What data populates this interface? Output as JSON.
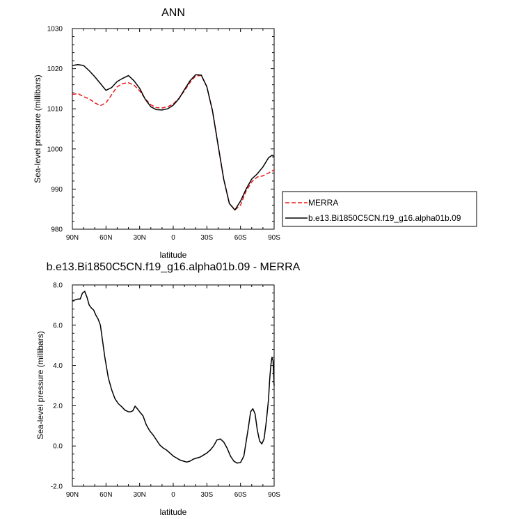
{
  "chart_data": [
    {
      "type": "line",
      "title": "ANN",
      "xlabel": "latitude",
      "ylabel": "Sea-level pressure (millibars)",
      "xlim": [
        90,
        -90
      ],
      "ylim": [
        980,
        1030
      ],
      "x_ticks": [
        90,
        60,
        30,
        0,
        -30,
        -60,
        -90
      ],
      "x_tick_labels": [
        "90N",
        "60N",
        "30N",
        "0",
        "30S",
        "60S",
        "90S"
      ],
      "y_ticks": [
        980,
        990,
        1000,
        1010,
        1020,
        1030
      ],
      "y_tick_labels": [
        "980",
        "990",
        "1000",
        "1010",
        "1020",
        "1030"
      ],
      "legend_position": "right",
      "series": [
        {
          "name": "MERRA",
          "color": "#e8191c",
          "dash": "dashed",
          "x": [
            90,
            85,
            80,
            75,
            70,
            65,
            60,
            55,
            50,
            45,
            40,
            35,
            30,
            25,
            20,
            15,
            10,
            5,
            0,
            -5,
            -10,
            -15,
            -20,
            -25,
            -30,
            -35,
            -40,
            -45,
            -50,
            -55,
            -60,
            -65,
            -70,
            -75,
            -80,
            -85,
            -90
          ],
          "values": [
            1013.6,
            1013.8,
            1013.0,
            1012.5,
            1011.5,
            1010.8,
            1011.5,
            1013.5,
            1015.5,
            1016.3,
            1016.5,
            1015.9,
            1014.5,
            1012.5,
            1011.0,
            1010.3,
            1010.2,
            1010.5,
            1011.2,
            1012.6,
            1014.5,
            1016.6,
            1018.2,
            1018.3,
            1015.5,
            1009.5,
            1001.0,
            992.5,
            986.5,
            984.8,
            986.0,
            989.5,
            991.8,
            993.0,
            993.3,
            994.0,
            994.8
          ]
        },
        {
          "name": "b.e13.Bi1850C5CN.f19_g16.alpha01b.09",
          "color": "#000000",
          "dash": "solid",
          "x": [
            90,
            85,
            80,
            75,
            70,
            65,
            60,
            55,
            50,
            45,
            40,
            35,
            30,
            25,
            20,
            15,
            10,
            5,
            0,
            -5,
            -10,
            -15,
            -20,
            -25,
            -30,
            -35,
            -40,
            -45,
            -50,
            -55,
            -60,
            -65,
            -70,
            -75,
            -80,
            -85,
            -88,
            -90
          ],
          "values": [
            1020.8,
            1021.0,
            1020.8,
            1019.5,
            1018.0,
            1016.3,
            1014.6,
            1015.3,
            1016.8,
            1017.6,
            1018.3,
            1017.0,
            1015.1,
            1012.4,
            1010.5,
            1009.8,
            1009.7,
            1010.0,
            1010.9,
            1012.5,
            1014.8,
            1017.0,
            1018.5,
            1018.4,
            1015.5,
            1009.5,
            1001.0,
            992.5,
            986.4,
            984.8,
            987.0,
            990.0,
            992.5,
            993.8,
            995.5,
            997.8,
            998.4,
            998.2
          ]
        }
      ]
    },
    {
      "type": "line",
      "title": "b.e13.Bi1850C5CN.f19_g16.alpha01b.09 - MERRA",
      "xlabel": "latitude",
      "ylabel": "Sea-level pressure (millibars)",
      "xlim": [
        90,
        -90
      ],
      "ylim": [
        -2.0,
        8.0
      ],
      "x_ticks": [
        90,
        60,
        30,
        0,
        -30,
        -60,
        -90
      ],
      "x_tick_labels": [
        "90N",
        "60N",
        "30N",
        "0",
        "30S",
        "60S",
        "90S"
      ],
      "y_ticks": [
        -2.0,
        0.0,
        2.0,
        4.0,
        6.0,
        8.0
      ],
      "y_tick_labels": [
        "-2.0",
        "0.0",
        "2.0",
        "4.0",
        "6.0",
        "8.0"
      ],
      "series": [
        {
          "color": "#000000",
          "dash": "solid",
          "x": [
            90,
            88,
            85,
            83,
            81,
            79,
            77,
            75,
            73,
            71,
            69,
            67,
            65,
            63,
            61,
            58,
            55,
            52,
            49,
            46,
            43,
            40,
            38,
            36,
            34,
            32,
            30,
            27,
            24,
            21,
            18,
            15,
            12,
            9,
            6,
            3,
            0,
            -3,
            -6,
            -9,
            -12,
            -15,
            -18,
            -21,
            -24,
            -27,
            -30,
            -33,
            -36,
            -39,
            -42,
            -45,
            -48,
            -51,
            -54,
            -57,
            -60,
            -63,
            -65,
            -67,
            -69,
            -71,
            -73,
            -75,
            -77,
            -79,
            -81,
            -83,
            -85,
            -86,
            -87,
            -88,
            -89,
            -90
          ],
          "values": [
            7.2,
            7.25,
            7.3,
            7.3,
            7.6,
            7.68,
            7.4,
            7.0,
            6.85,
            6.75,
            6.5,
            6.3,
            6.0,
            5.2,
            4.4,
            3.4,
            2.8,
            2.35,
            2.1,
            1.95,
            1.78,
            1.7,
            1.7,
            1.75,
            1.98,
            1.85,
            1.7,
            1.5,
            1.05,
            0.75,
            0.55,
            0.3,
            0.05,
            -0.1,
            -0.2,
            -0.35,
            -0.5,
            -0.6,
            -0.7,
            -0.75,
            -0.8,
            -0.75,
            -0.65,
            -0.6,
            -0.55,
            -0.45,
            -0.35,
            -0.2,
            0.0,
            0.3,
            0.35,
            0.2,
            -0.1,
            -0.5,
            -0.75,
            -0.85,
            -0.82,
            -0.5,
            0.2,
            0.9,
            1.7,
            1.85,
            1.6,
            0.8,
            0.25,
            0.1,
            0.35,
            1.2,
            2.3,
            3.3,
            4.0,
            4.4,
            4.25,
            3.0
          ]
        }
      ]
    }
  ]
}
